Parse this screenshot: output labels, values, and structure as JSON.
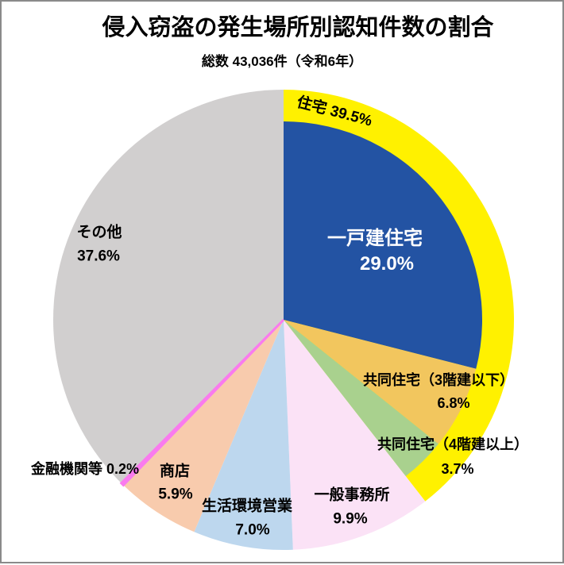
{
  "page": {
    "title": "侵入窃盗の発生場所別認知件数の割合",
    "subtitle": "総数 43,036件（令和6年）"
  },
  "chart_data": {
    "type": "pie",
    "title": "侵入窃盗の発生場所別認知件数の割合",
    "subtitle": "総数 43,036件（令和6年）",
    "total_cases": 43036,
    "year_label": "令和6年",
    "start_angle_deg": 0,
    "direction": "clockwise",
    "ring": {
      "label": "住宅",
      "value": 39.5,
      "color": "#FFF100",
      "display": "住宅 39.5%"
    },
    "slices": [
      {
        "label": "一戸建住宅",
        "value": 29.0,
        "color": "#2353A3",
        "radius": "inner",
        "text_color": "#FFFFFF"
      },
      {
        "label": "共同住宅（3階建以下）",
        "value": 6.8,
        "color": "#F2C65E",
        "radius": "inner",
        "text_color": "#000000"
      },
      {
        "label": "共同住宅（4階建以上）",
        "value": 3.7,
        "color": "#A9D18E",
        "radius": "inner",
        "text_color": "#000000"
      },
      {
        "label": "一般事務所",
        "value": 9.9,
        "color": "#FBE2F6",
        "radius": "outer",
        "text_color": "#000000"
      },
      {
        "label": "生活環境営業",
        "value": 7.0,
        "color": "#BDD7EE",
        "radius": "outer",
        "text_color": "#000000"
      },
      {
        "label": "商店",
        "value": 5.9,
        "color": "#F8CBAD",
        "radius": "outer",
        "text_color": "#000000"
      },
      {
        "label": "金融機関等",
        "value": 0.2,
        "color": "#F97BEE",
        "radius": "outer",
        "text_color": "#000000"
      },
      {
        "label": "その他",
        "value": 37.6,
        "color": "#D1CFCF",
        "radius": "outer",
        "text_color": "#000000"
      }
    ]
  },
  "labels": {
    "jutaku": "住宅 39.5%",
    "ikkodate_name": "一戸建住宅",
    "ikkodate_pct": "29.0%",
    "kyodo3_name": "共同住宅（3階建以下）",
    "kyodo3_pct": "6.8%",
    "kyodo4_name": "共同住宅（4階建以上）",
    "kyodo4_pct": "3.7%",
    "jimusho_name": "一般事務所",
    "jimusho_pct": "9.9%",
    "seikatsu_name": "生活環境営業",
    "seikatsu_pct": "7.0%",
    "shoten_name": "商店",
    "shoten_pct": "5.9%",
    "kinyu": "金融機関等 0.2%",
    "sonota_name": "その他",
    "sonota_pct": "37.6%"
  }
}
